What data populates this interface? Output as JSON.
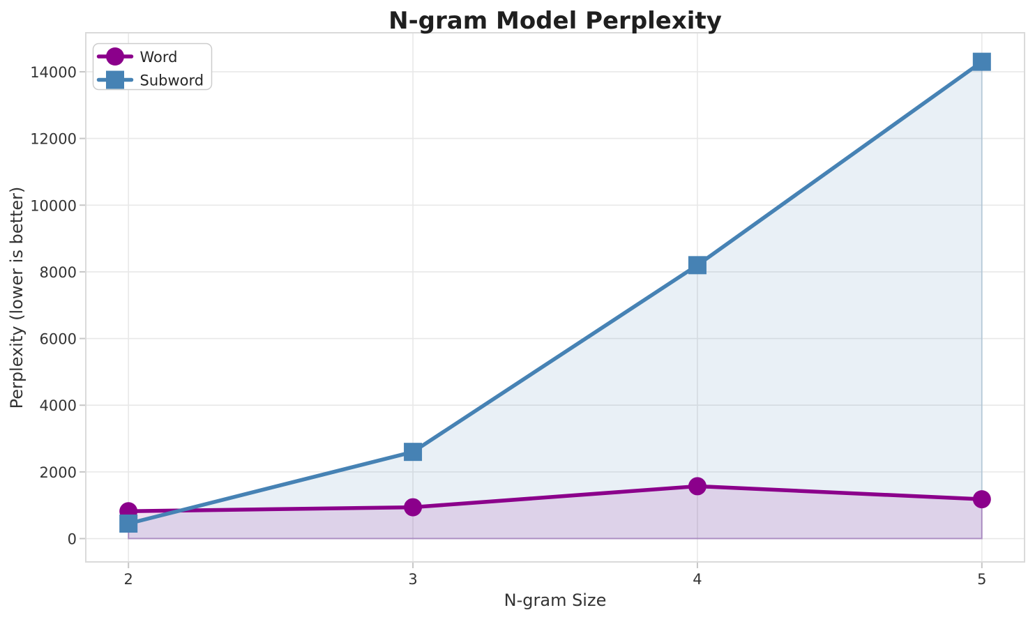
{
  "chart_data": {
    "type": "line",
    "title": "N-gram Model Perplexity",
    "xlabel": "N-gram Size",
    "ylabel": "Perplexity (lower is better)",
    "x": [
      2,
      3,
      4,
      5
    ],
    "series": [
      {
        "name": "Word",
        "marker": "circle",
        "color": "#8B008B",
        "values": [
          820,
          940,
          1570,
          1180
        ]
      },
      {
        "name": "Subword",
        "marker": "square",
        "color": "#4682B4",
        "values": [
          450,
          2600,
          8200,
          14300
        ]
      }
    ],
    "fill_to_zero": true,
    "fill_opacity": 0.12,
    "xticks": [
      2,
      3,
      4,
      5
    ],
    "xtick_labels": [
      "2",
      "3",
      "4",
      "5"
    ],
    "yticks": [
      0,
      2000,
      4000,
      6000,
      8000,
      10000,
      12000,
      14000
    ],
    "ytick_labels": [
      "0",
      "2000",
      "4000",
      "6000",
      "8000",
      "10000",
      "12000",
      "14000"
    ],
    "xlim": [
      1.85,
      5.15
    ],
    "ylim": [
      -700,
      15170
    ],
    "grid": true,
    "legend": {
      "position": "upper left",
      "entries": [
        "Word",
        "Subword"
      ]
    },
    "colors": {
      "background": "#FFFFFF",
      "grid": "#E8E8E8",
      "spine": "#DADADA",
      "tick_mark": "#C6C6C6",
      "tick_text": "#333333",
      "title_text": "#1F1F1F",
      "legend_border": "#CCCCCC",
      "legend_background": "#FFFFFF",
      "word_series": "#8B008B",
      "subword_series": "#4682B4"
    }
  }
}
